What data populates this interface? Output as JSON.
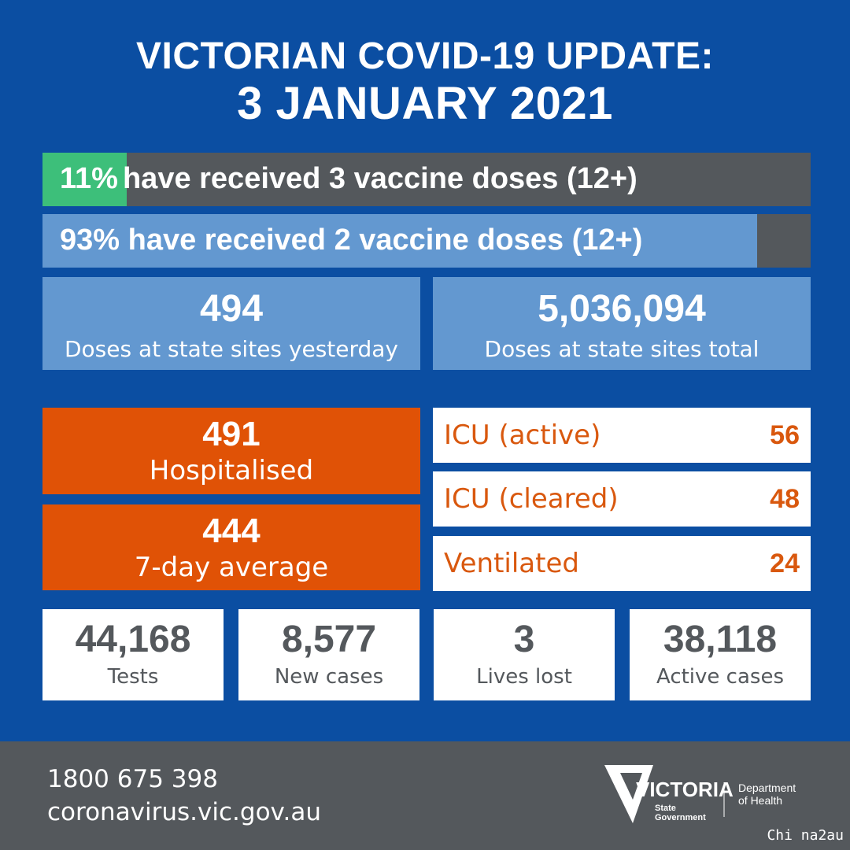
{
  "header": {
    "title_line1": "VICTORIAN COVID-19 UPDATE:",
    "title_line2": "3 JANUARY 2021"
  },
  "vaccine_bars": [
    {
      "percent_label": "11%",
      "text": "have received 3 vaccine doses (12+)",
      "fill_percent": 11,
      "fill_color": "#3dbf7a"
    },
    {
      "text": "93% have received 2 vaccine doses (12+)",
      "fill_percent": 93,
      "fill_color": "#6398d0"
    }
  ],
  "doses": {
    "yesterday": {
      "value": "494",
      "label": "Doses at state sites yesterday"
    },
    "total": {
      "value": "5,036,094",
      "label": "Doses at state sites total"
    }
  },
  "hospital": {
    "hospitalised": {
      "value": "491",
      "label": "Hospitalised"
    },
    "seven_day_average": {
      "value": "444",
      "label": "7-day average"
    }
  },
  "icu": [
    {
      "label": "ICU (active)",
      "value": "56"
    },
    {
      "label": "ICU (cleared)",
      "value": "48"
    },
    {
      "label": "Ventilated",
      "value": "24"
    }
  ],
  "stats": [
    {
      "value": "44,168",
      "label": "Tests"
    },
    {
      "value": "8,577",
      "label": "New cases"
    },
    {
      "value": "3",
      "label": "Lives lost"
    },
    {
      "value": "38,118",
      "label": "Active cases"
    }
  ],
  "footer": {
    "phone": "1800 675 398",
    "website": "coronavirus.vic.gov.au",
    "logo_name": "victoria-state-government-logo",
    "logo_text": "VICTORIA",
    "logo_sub1": "State",
    "logo_sub2": "Government",
    "dept_line1": "Department",
    "dept_line2": "of Health"
  },
  "watermark": "Chi na2au",
  "colors": {
    "background": "#0b4ea2",
    "orange": "#e05206",
    "light_blue": "#6398d0",
    "green": "#3dbf7a",
    "grey": "#54585c"
  }
}
